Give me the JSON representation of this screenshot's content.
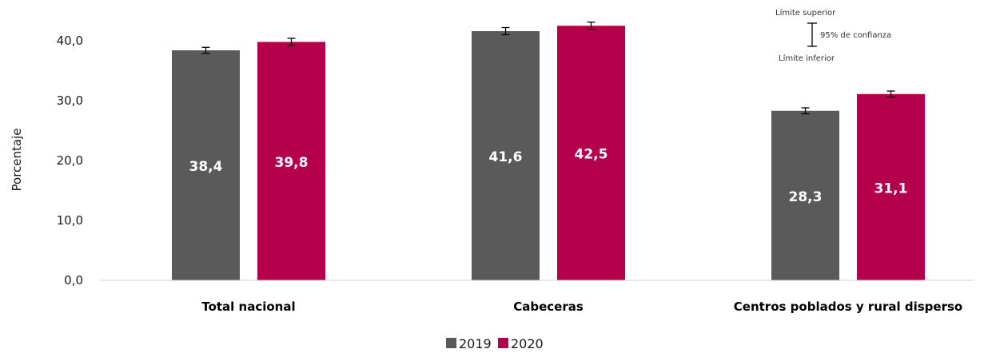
{
  "chart_data": {
    "type": "bar",
    "ylabel": "Porcentaje",
    "ylim": [
      0,
      40
    ],
    "yticks": [
      "0,0",
      "10,0",
      "20,0",
      "30,0",
      "40,0"
    ],
    "categories": [
      "Total nacional",
      "Cabeceras",
      "Centros poblados y rural disperso"
    ],
    "series": [
      {
        "name": "2019",
        "color": "#5a5a5a",
        "values": [
          38.4,
          41.6,
          28.3
        ],
        "labels": [
          "38,4",
          "41,6",
          "28,3"
        ],
        "ci_lower": [
          37.9,
          41.0,
          27.8
        ],
        "ci_upper": [
          38.9,
          42.2,
          28.8
        ]
      },
      {
        "name": "2020",
        "color": "#b5004b",
        "values": [
          39.8,
          42.5,
          31.1
        ],
        "labels": [
          "39,8",
          "42,5",
          "31,1"
        ],
        "ci_lower": [
          39.2,
          41.9,
          30.6
        ],
        "ci_upper": [
          40.4,
          43.1,
          31.6
        ]
      }
    ],
    "grid": false,
    "legend_position": "bottom-center",
    "annotation": {
      "upper": "Límite superior",
      "middle": "95% de confianza",
      "lower": "Límite inferior"
    }
  }
}
